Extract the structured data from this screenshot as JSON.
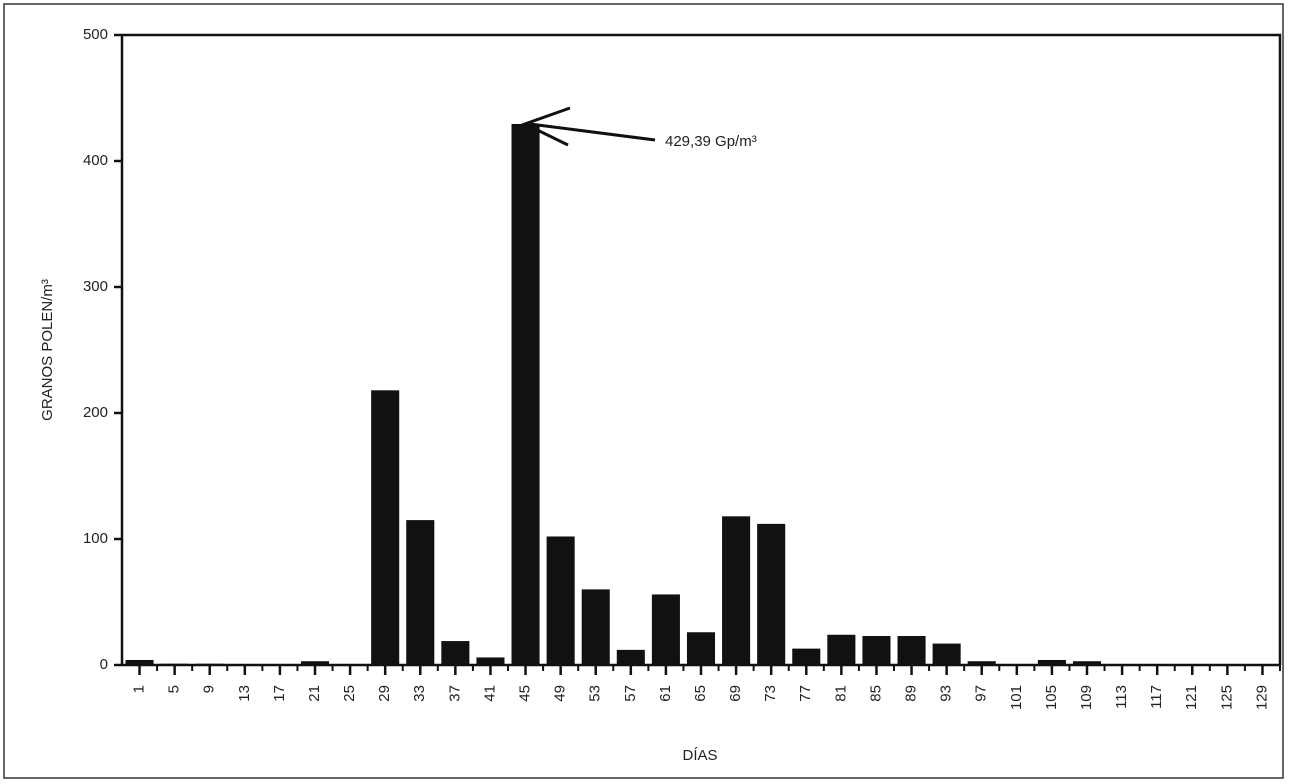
{
  "chart_data": {
    "type": "bar",
    "x_label": "DÍAS",
    "y_label": "GRANOS POLEN/m³",
    "annotation": "429,39 Gp/m³",
    "categories": [
      "1",
      "5",
      "9",
      "13",
      "17",
      "21",
      "25",
      "29",
      "33",
      "37",
      "41",
      "45",
      "49",
      "53",
      "57",
      "61",
      "65",
      "69",
      "73",
      "77",
      "81",
      "85",
      "89",
      "93",
      "97",
      "101",
      "105",
      "109",
      "113",
      "117",
      "121",
      "125",
      "129"
    ],
    "values": [
      4,
      1,
      1,
      0,
      0,
      3,
      0,
      218,
      115,
      19,
      6,
      429.39,
      102,
      60,
      12,
      56,
      26,
      118,
      112,
      13,
      24,
      23,
      23,
      17,
      3,
      0,
      4,
      3,
      0,
      0,
      0,
      0,
      0
    ],
    "color": "#111111",
    "ylim": [
      0,
      500
    ],
    "yticks": [
      0,
      100,
      200,
      300,
      400,
      500
    ],
    "grid": false
  }
}
